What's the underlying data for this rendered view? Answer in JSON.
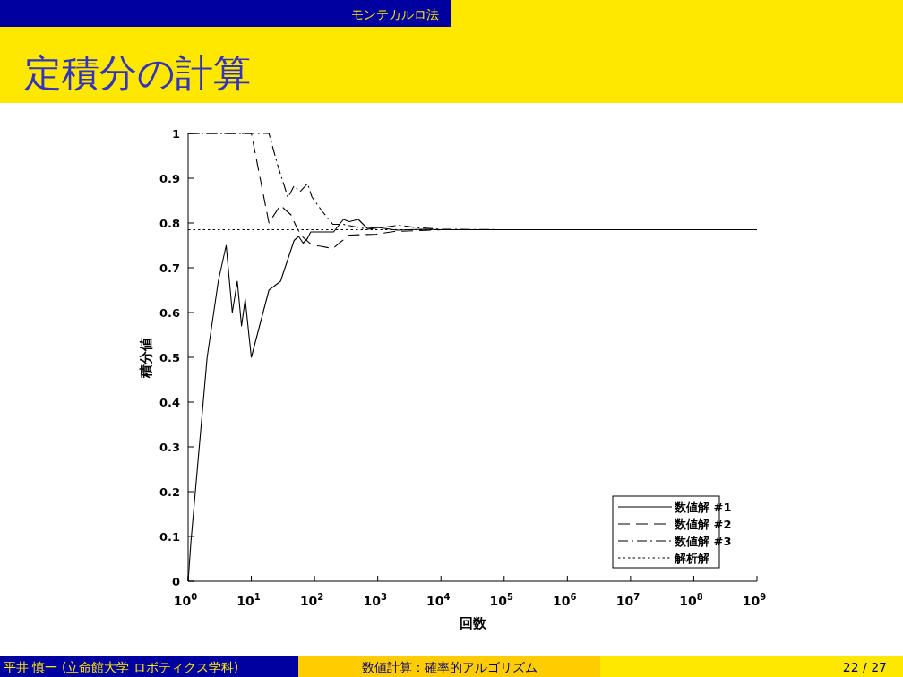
{
  "chart_data": {
    "type": "line",
    "title": "定積分の計算",
    "xlabel": "回数",
    "ylabel": "積分値",
    "annotations": [
      "モンテカルロ法",
      "平井 慎一 (立命館大学 ロボティクス学科)",
      "数値計算：確率的アルゴリズム",
      "22 / 27"
    ],
    "log": "x",
    "xlim": [
      1,
      1000000000
    ],
    "xticks": [
      {
        "value": 1,
        "label": "10$^{0}$"
      },
      {
        "value": 10,
        "label": "10$^{1}$"
      },
      {
        "value": 100,
        "label": "10$^{2}$"
      },
      {
        "value": 1000,
        "label": "10$^{3}$"
      },
      {
        "value": 10000,
        "label": "10$^{4}$"
      },
      {
        "value": 100000,
        "label": "10$^{5}$"
      },
      {
        "value": 1000000,
        "label": "10$^{6}$"
      },
      {
        "value": 10000000,
        "label": "10$^{7}$"
      },
      {
        "value": 100000000,
        "label": "10$^{8}$"
      },
      {
        "value": 1000000000,
        "label": "10$^{9}$"
      }
    ],
    "ylim": [
      0,
      1
    ],
    "yticks": [
      0,
      0.1,
      0.2,
      0.3,
      0.4,
      0.5,
      0.6,
      0.7,
      0.8,
      0.9,
      1
    ],
    "legend": "bottom right",
    "marker": "none",
    "series": [
      {
        "name": "数値解 #1",
        "color": "#000000",
        "line_style": "solid",
        "x": [
          1,
          1.11,
          2,
          3,
          4,
          5,
          6,
          7,
          8,
          9,
          10,
          19,
          29,
          47.5,
          56,
          66,
          77,
          87,
          200,
          286,
          356,
          493,
          683,
          1000,
          2000,
          5000,
          10000,
          100000,
          1000000,
          1000000000
        ],
        "values": [
          0,
          0.09,
          0.5,
          0.67,
          0.75,
          0.6,
          0.67,
          0.57,
          0.63,
          0.56,
          0.5,
          0.65,
          0.67,
          0.761,
          0.77,
          0.755,
          0.765,
          0.78,
          0.78,
          0.808,
          0.803,
          0.808,
          0.788,
          0.79,
          0.784,
          0.786,
          0.785,
          0.785,
          0.785,
          0.785
        ]
      },
      {
        "name": "数値解 #2",
        "color": "#000000",
        "line_style": "dashed",
        "x": [
          1,
          10,
          19,
          21,
          29,
          34,
          42.6,
          53,
          62.5,
          92,
          126,
          195,
          256,
          356,
          946,
          1820,
          10000,
          100000,
          1000000
        ],
        "values": [
          1,
          1,
          0.8,
          0.81,
          0.84,
          0.83,
          0.818,
          0.788,
          0.771,
          0.75,
          0.748,
          0.743,
          0.757,
          0.773,
          0.775,
          0.781,
          0.785,
          0.785,
          0.785
        ]
      },
      {
        "name": "数値解 #3",
        "color": "#000000",
        "line_style": "dashdot",
        "x": [
          1,
          19,
          26,
          38,
          47.5,
          59,
          77.5,
          91,
          134,
          195,
          286,
          683,
          2213,
          3852,
          10000,
          100000,
          1000000
        ],
        "values": [
          1,
          1,
          0.93,
          0.857,
          0.883,
          0.87,
          0.888,
          0.858,
          0.825,
          0.797,
          0.797,
          0.786,
          0.795,
          0.79,
          0.786,
          0.785,
          0.785
        ]
      },
      {
        "name": "解析解",
        "color": "#000000",
        "line_style": "dotted",
        "x": [
          1,
          1000000000
        ],
        "values": [
          0.785,
          0.785
        ]
      }
    ]
  }
}
